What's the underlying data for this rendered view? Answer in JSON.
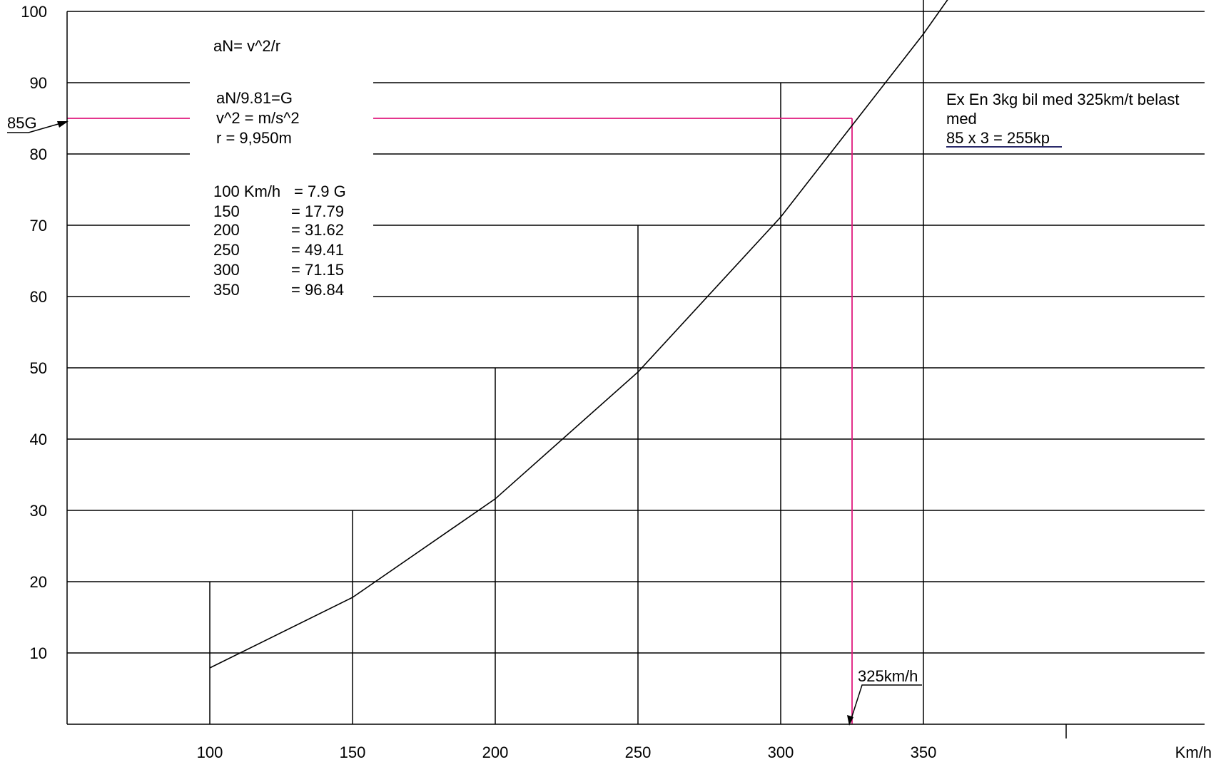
{
  "chart_data": {
    "type": "line",
    "xlabel": "Km/h",
    "ylabel": "",
    "xlim": [
      50,
      450
    ],
    "ylim": [
      0,
      100
    ],
    "x_ticks": [
      "100",
      "150",
      "200",
      "250",
      "300",
      "350"
    ],
    "y_ticks": [
      "10",
      "20",
      "30",
      "40",
      "50",
      "60",
      "70",
      "80",
      "90",
      "100"
    ],
    "grid": "horizontal lines at every 10; vertical guide lines at 100, 150, 200, 250, 300, 350",
    "series": [
      {
        "x": [
          100,
          150,
          200,
          250,
          300,
          350,
          360
        ],
        "y": [
          7.9,
          17.79,
          31.62,
          49.41,
          71.15,
          96.84,
          102.5
        ]
      }
    ],
    "vertical_guides": [
      {
        "x": 100,
        "top": 20
      },
      {
        "x": 150,
        "top": 30
      },
      {
        "x": 200,
        "top": 50
      },
      {
        "x": 250,
        "top": 70
      },
      {
        "x": 300,
        "top": 90
      },
      {
        "x": 350,
        "top": 100
      }
    ],
    "highlight": {
      "x": 325,
      "y": 85,
      "color": "#e0197d"
    },
    "marker_label_y": "85G",
    "marker_label_x": "325km/h",
    "annotations": {
      "formula1": "aN= v^2/r",
      "formula2": "aN/9.81=G",
      "formula3": "v^2 = m/s^2",
      "formula4": "r = 9,950m",
      "table": [
        {
          "speed": "100 Km/h",
          "g": "= 7.9 G"
        },
        {
          "speed": "150",
          "g": "= 17.79"
        },
        {
          "speed": "200",
          "g": "= 31.62"
        },
        {
          "speed": "250",
          "g": "= 49.41"
        },
        {
          "speed": "300",
          "g": "= 71.15"
        },
        {
          "speed": "350",
          "g": "= 96.84"
        }
      ],
      "example_line1": "Ex   En 3kg bil med 325km/t belast",
      "example_line2": "med",
      "example_line3": "85 x 3 = 255kp"
    }
  }
}
